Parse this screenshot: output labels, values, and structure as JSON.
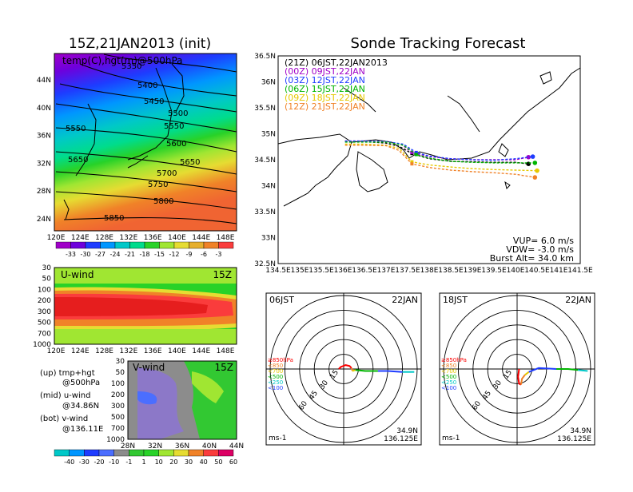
{
  "titles": {
    "left": "15Z,21JAN2013 (init)",
    "right": "Sonde Tracking Forecast"
  },
  "map500": {
    "overlay": "temp(C),hgt(m)@500hPa",
    "lat_ticks": [
      "44N",
      "40N",
      "36N",
      "32N",
      "28N",
      "24N"
    ],
    "lon_ticks": [
      "120E",
      "124E",
      "128E",
      "132E",
      "136E",
      "140E",
      "144E",
      "148E"
    ],
    "contour_labels": [
      "5350",
      "5400",
      "5450",
      "5500",
      "5550",
      "5550",
      "5600",
      "5650",
      "5650",
      "5700",
      "5750",
      "5800",
      "5850"
    ],
    "colorbar_labels": [
      "-33",
      "-30",
      "-27",
      "-24",
      "-21",
      "-18",
      "-15",
      "-12",
      "-9",
      "-6",
      "-3"
    ],
    "colorbar_colors": [
      "#a000c8",
      "#6e00dc",
      "#1e3cff",
      "#0096ff",
      "#00c8c8",
      "#00dc8c",
      "#28d228",
      "#a0e632",
      "#e6dc32",
      "#e6af2d",
      "#f08228",
      "#fa3c3c"
    ]
  },
  "uwind": {
    "label": "U-wind",
    "time": "15Z",
    "p_ticks": [
      "30",
      "50",
      "100",
      "200",
      "300",
      "500",
      "700",
      "1000"
    ],
    "lon_ticks": [
      "120E",
      "124E",
      "128E",
      "132E",
      "136E",
      "140E",
      "144E",
      "148E"
    ]
  },
  "vwind": {
    "label": "V-wind",
    "time": "15Z",
    "p_ticks": [
      "30",
      "50",
      "100",
      "200",
      "300",
      "500",
      "700",
      "1000"
    ],
    "lat_ticks": [
      "28N",
      "32N",
      "36N",
      "40N",
      "44N"
    ],
    "colorbar_labels": [
      "-40",
      "-30",
      "-20",
      "-10",
      "-1",
      "1",
      "10",
      "20",
      "30",
      "40",
      "50",
      "60"
    ],
    "colorbar_colors": [
      "#00c8c8",
      "#0096ff",
      "#1e3cff",
      "#4b6eff",
      "#8c8c8c",
      "#32c832",
      "#28d228",
      "#a0e632",
      "#e6dc32",
      "#f08228",
      "#fa3c3c",
      "#dc0064"
    ]
  },
  "legend_left": {
    "up": "(up) tmp+hgt",
    "up2": "@500hPa",
    "mid": "(mid) u-wind",
    "mid2": "@34.86N",
    "bot": "(bot) v-wind",
    "bot2": "@136.11E"
  },
  "track": {
    "lat_ticks": [
      "36.5N",
      "36N",
      "35.5N",
      "35N",
      "34.5N",
      "34N",
      "33.5N",
      "33N",
      "32.5N"
    ],
    "lon_ticks": [
      "134.5E",
      "135E",
      "135.5E",
      "136E",
      "136.5E",
      "137E",
      "137.5E",
      "138E",
      "138.5E",
      "139E",
      "139.5E",
      "140E",
      "140.5E",
      "141E",
      "141.5E"
    ],
    "xlim": [
      134.5,
      141.5
    ],
    "ylim": [
      32.5,
      36.5
    ],
    "legend": [
      {
        "label": "(21Z)  06JST,22JAN2013",
        "color": "#000000"
      },
      {
        "label": "(00Z)  09JST,22JAN",
        "color": "#a000c8"
      },
      {
        "label": "(03Z)  12JST,22JAN",
        "color": "#1e3cff"
      },
      {
        "label": "(06Z)  15JST,22JAN",
        "color": "#00b400"
      },
      {
        "label": "(09Z)  18JST,22JAN",
        "color": "#e6c800"
      },
      {
        "label": "(12Z)  21JST,22JAN",
        "color": "#f08228"
      }
    ],
    "series": [
      {
        "name": "21Z",
        "color": "#000000",
        "lon": [
          136.05,
          136.5,
          137.0,
          137.3,
          137.6,
          138.0,
          138.5,
          139.0,
          139.5,
          140.0,
          140.3
        ],
        "lat": [
          34.86,
          34.85,
          34.82,
          34.76,
          34.62,
          34.52,
          34.47,
          34.46,
          34.45,
          34.45,
          34.42
        ]
      },
      {
        "name": "00Z",
        "color": "#a000c8",
        "lon": [
          136.05,
          136.5,
          137.0,
          137.35,
          137.6,
          138.0,
          138.5,
          139.0,
          139.5,
          140.0,
          140.3
        ],
        "lat": [
          34.86,
          34.86,
          34.85,
          34.8,
          34.64,
          34.56,
          34.52,
          34.5,
          34.5,
          34.5,
          34.55
        ]
      },
      {
        "name": "03Z",
        "color": "#1e3cff",
        "lon": [
          136.05,
          136.5,
          137.0,
          137.4,
          137.7,
          138.0,
          138.5,
          139.0,
          139.5,
          140.0,
          140.4
        ],
        "lat": [
          34.86,
          34.86,
          34.85,
          34.8,
          34.64,
          34.57,
          34.52,
          34.5,
          34.49,
          34.52,
          34.56
        ]
      },
      {
        "name": "06Z",
        "color": "#00b400",
        "lon": [
          136.05,
          136.5,
          137.0,
          137.4,
          137.7,
          138.0,
          138.5,
          139.0,
          139.5,
          140.0,
          140.45
        ],
        "lat": [
          34.84,
          34.84,
          34.84,
          34.78,
          34.6,
          34.53,
          34.47,
          34.45,
          34.44,
          34.44,
          34.44
        ]
      },
      {
        "name": "09Z",
        "color": "#e6c800",
        "lon": [
          136.05,
          136.5,
          137.0,
          137.3,
          137.6,
          138.0,
          138.5,
          139.0,
          139.5,
          140.0,
          140.5
        ],
        "lat": [
          34.8,
          34.8,
          34.78,
          34.72,
          34.46,
          34.4,
          34.36,
          34.33,
          34.31,
          34.3,
          34.29
        ]
      },
      {
        "name": "12Z",
        "color": "#f08228",
        "lon": [
          136.05,
          136.5,
          137.0,
          137.3,
          137.6,
          138.0,
          138.5,
          139.0,
          139.5,
          140.0,
          140.45
        ],
        "lat": [
          34.78,
          34.78,
          34.77,
          34.68,
          34.42,
          34.35,
          34.3,
          34.27,
          34.25,
          34.22,
          34.16
        ]
      }
    ],
    "info": {
      "vup": "VUP=  6.0  m/s",
      "vdw": "VDW= -3.0  m/s",
      "burst": "Burst Alt= 34.0  km"
    }
  },
  "hodo1": {
    "time": "06JST",
    "date": "22JAN",
    "ring_labels": [
      "15",
      "30",
      "45",
      "60"
    ],
    "legend": [
      "≥850hPa",
      "<850",
      "<700",
      "<500",
      "<250",
      "<100"
    ],
    "legend_colors": [
      "#fa0000",
      "#f08228",
      "#e6c800",
      "#00b400",
      "#00c8c8",
      "#1e3cff"
    ],
    "unit": "ms-1",
    "lat": "34.9N",
    "lon": "136.125E",
    "trace": [
      {
        "color": "#fa0000",
        "pts": [
          [
            -5,
            0
          ],
          [
            -3,
            2
          ],
          [
            2,
            4
          ],
          [
            6,
            3
          ],
          [
            8,
            1
          ]
        ]
      },
      {
        "color": "#f08228",
        "pts": [
          [
            8,
            1
          ],
          [
            9,
            -2
          ]
        ]
      },
      {
        "color": "#e6c800",
        "pts": [
          [
            9,
            -2
          ],
          [
            12,
            -1
          ]
        ]
      },
      {
        "color": "#00b400",
        "pts": [
          [
            12,
            -1
          ],
          [
            22,
            -2
          ],
          [
            35,
            -2
          ]
        ]
      },
      {
        "color": "#1e3cff",
        "pts": [
          [
            35,
            -2
          ],
          [
            45,
            -2
          ],
          [
            60,
            -3
          ]
        ]
      },
      {
        "color": "#00c8c8",
        "pts": [
          [
            60,
            -3
          ],
          [
            72,
            -3
          ]
        ]
      }
    ]
  },
  "hodo2": {
    "time": "18JST",
    "date": "22JAN",
    "ring_labels": [
      "15",
      "30",
      "45",
      "60"
    ],
    "legend": [
      "≥850hPa",
      "<850",
      "<700",
      "<500",
      "<250",
      "<100"
    ],
    "legend_colors": [
      "#fa0000",
      "#f08228",
      "#e6c800",
      "#00b400",
      "#00c8c8",
      "#1e3cff"
    ],
    "unit": "ms-1",
    "lat": "34.9N",
    "lon": "136.125E",
    "trace": [
      {
        "color": "#fa0000",
        "pts": [
          [
            2,
            0
          ],
          [
            1,
            -8
          ],
          [
            2,
            -15
          ],
          [
            4,
            -16
          ]
        ]
      },
      {
        "color": "#f08228",
        "pts": [
          [
            4,
            -16
          ],
          [
            5,
            -10
          ],
          [
            8,
            -6
          ]
        ]
      },
      {
        "color": "#e6c800",
        "pts": [
          [
            8,
            -6
          ],
          [
            12,
            -3
          ]
        ]
      },
      {
        "color": "#1e3cff",
        "pts": [
          [
            12,
            -3
          ],
          [
            22,
            1
          ],
          [
            40,
            0
          ]
        ]
      },
      {
        "color": "#00b400",
        "pts": [
          [
            40,
            0
          ],
          [
            52,
            0
          ],
          [
            62,
            -1
          ]
        ]
      },
      {
        "color": "#00c8c8",
        "pts": [
          [
            62,
            -1
          ],
          [
            72,
            -2
          ]
        ]
      }
    ]
  }
}
